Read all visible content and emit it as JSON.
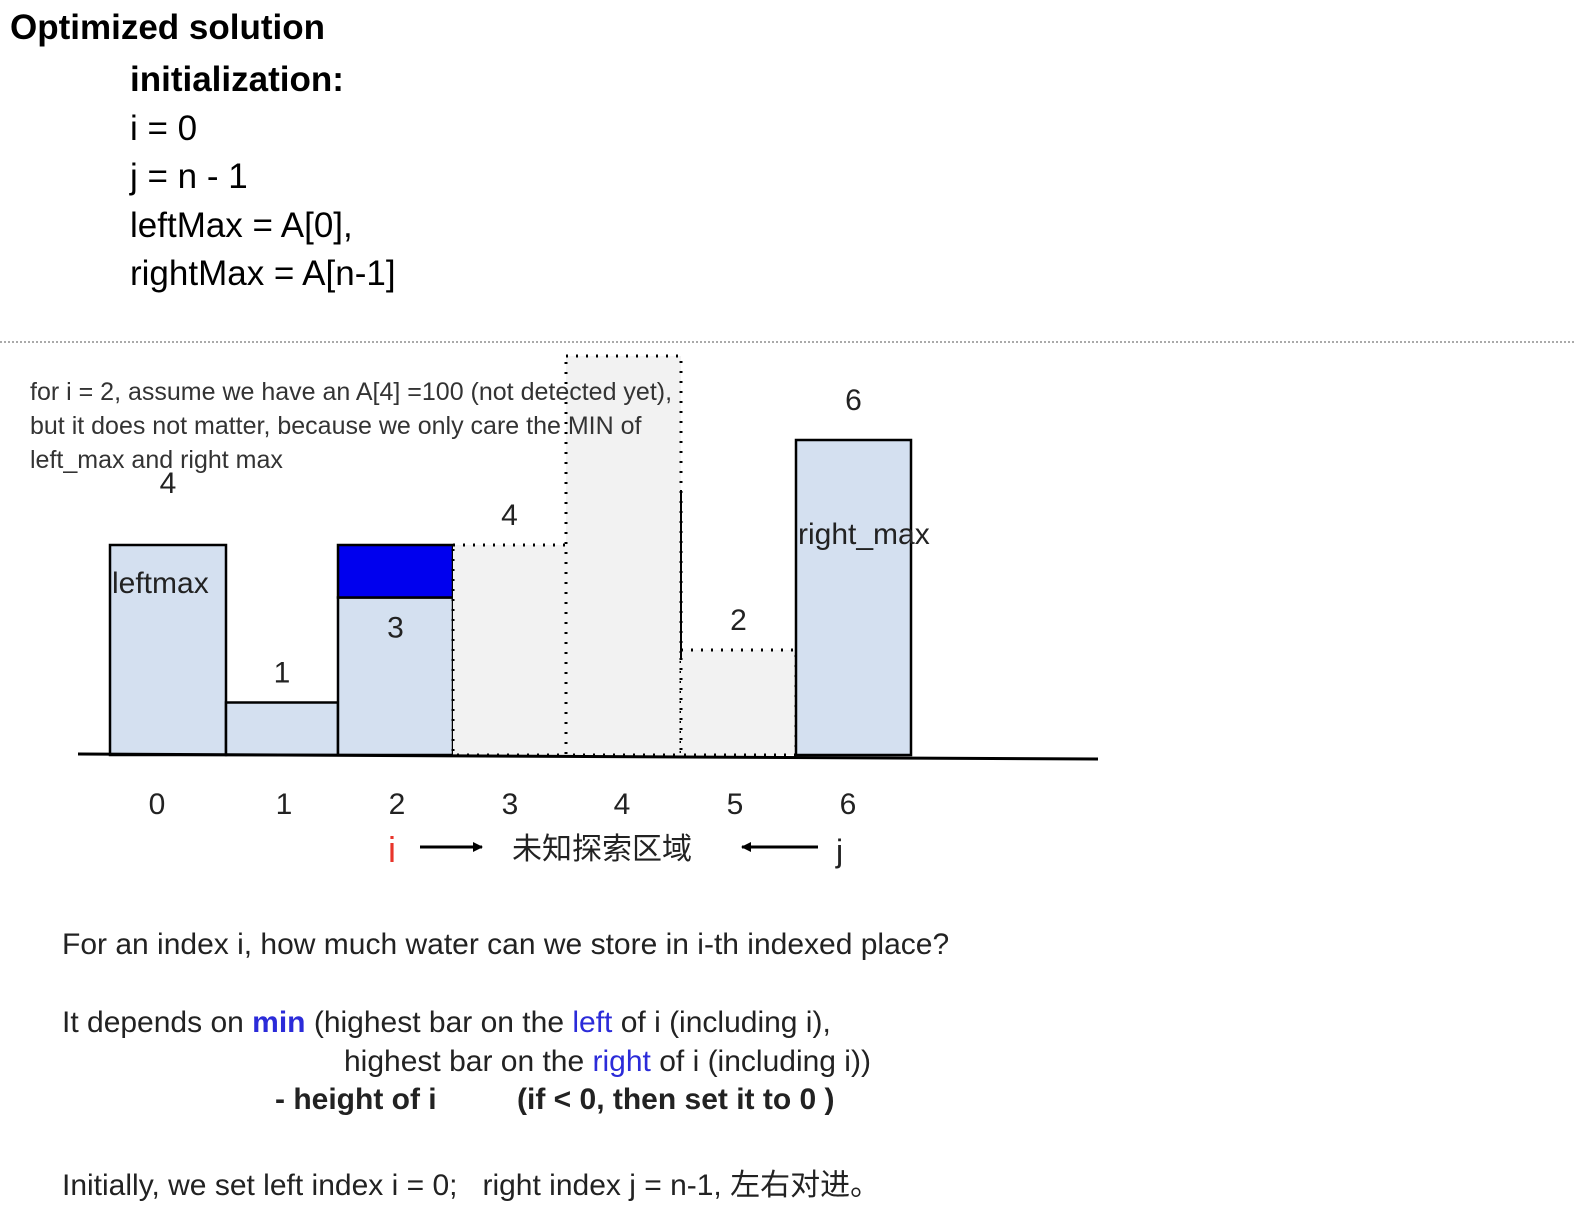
{
  "header": {
    "title": "Optimized solution",
    "init_heading": "initialization:",
    "init_lines": [
      "i = 0",
      "j = n - 1",
      "leftMax = A[0],",
      "rightMax = A[n-1]"
    ]
  },
  "diagram": {
    "note_lines": [
      "for i = 2,  assume we have an A[4] =100 (not detected yet),",
      "but it does not matter, because we only care the MIN of",
      "left_max and right max"
    ],
    "bars": [
      {
        "index": "0",
        "height": 4,
        "value_label": "4",
        "inner_label": "leftmax",
        "style": "known"
      },
      {
        "index": "1",
        "height": 1,
        "value_label": "1",
        "inner_label": "",
        "style": "known"
      },
      {
        "index": "2",
        "height": 3,
        "value_label": "3",
        "inner_label": "",
        "style": "current",
        "water": 1
      },
      {
        "index": "3",
        "height": 4,
        "value_label": "4",
        "inner_label": "",
        "style": "unknown"
      },
      {
        "index": "4",
        "height": 7.6,
        "value_label": "",
        "inner_label": "",
        "style": "unknown-tall"
      },
      {
        "index": "5",
        "height": 2,
        "value_label": "2",
        "inner_label": "",
        "style": "unknown"
      },
      {
        "index": "6",
        "height": 6,
        "value_label": "6",
        "inner_label": "right_max",
        "style": "known"
      }
    ],
    "pointer_i": "i",
    "pointer_j": "j",
    "region_label": "未知探索区域",
    "colors": {
      "bar_fill": "#d4e0f0",
      "unknown_fill": "#f2f2f2",
      "water": "#0000ee",
      "pointer_i": "#e8352b"
    }
  },
  "explanation": {
    "question": "For an index i, how much water can we store in i-th indexed place?",
    "l1_a": "It depends on ",
    "l1_min": "min",
    "l1_b": " (highest bar on the ",
    "l1_left": "left",
    "l1_c": " of i (including i),",
    "l2_a": "highest bar on the ",
    "l2_right": "right",
    "l2_b": " of i (including i))",
    "l3_a": "- height of i",
    "l3_b": "(if < 0, then set it to 0 )",
    "last": "Initially, we set left index i = 0;   right index j = n-1, 左右对进。"
  }
}
